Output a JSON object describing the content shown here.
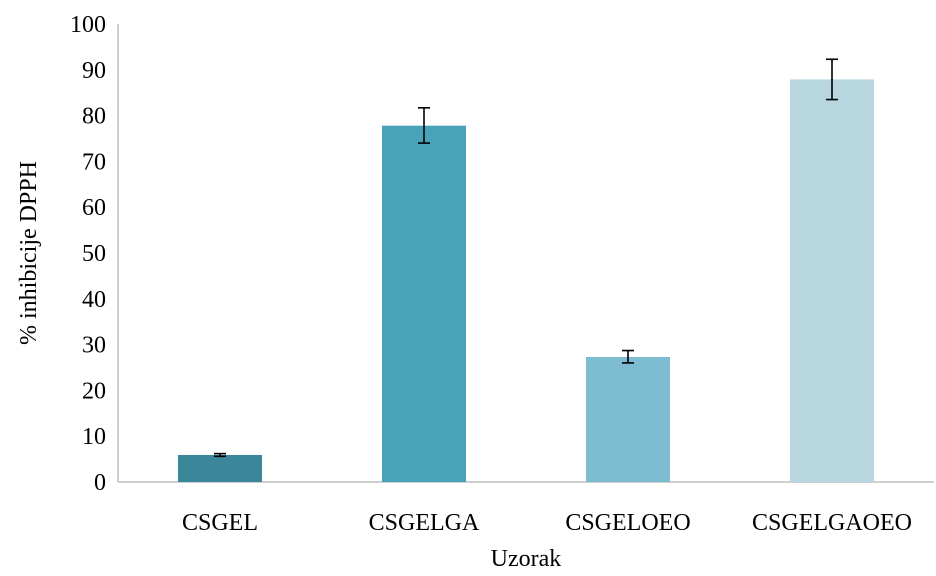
{
  "chart_data": {
    "type": "bar",
    "title": "",
    "xlabel": "Uzorak",
    "ylabel": "% inhibicije DPPH",
    "ylim": [
      0,
      100
    ],
    "ytick_step": 10,
    "yticks": [
      "0",
      "10",
      "20",
      "30",
      "40",
      "50",
      "60",
      "70",
      "80",
      "90",
      "100"
    ],
    "grid": false,
    "legend": "none",
    "categories": [
      "CSGEL",
      "CSGELGA",
      "CSGELOEO",
      "CSGELGAOEO"
    ],
    "values": [
      5.9,
      77.8,
      27.3,
      87.9
    ],
    "error_bars": [
      {
        "low": 5.6,
        "high": 6.2
      },
      {
        "low": 74.0,
        "high": 81.7
      },
      {
        "low": 26.0,
        "high": 28.7
      },
      {
        "low": 83.5,
        "high": 92.3
      }
    ],
    "colors": [
      "#3a8799",
      "#48a3ba",
      "#7dbcd1",
      "#b7d6e0"
    ]
  }
}
